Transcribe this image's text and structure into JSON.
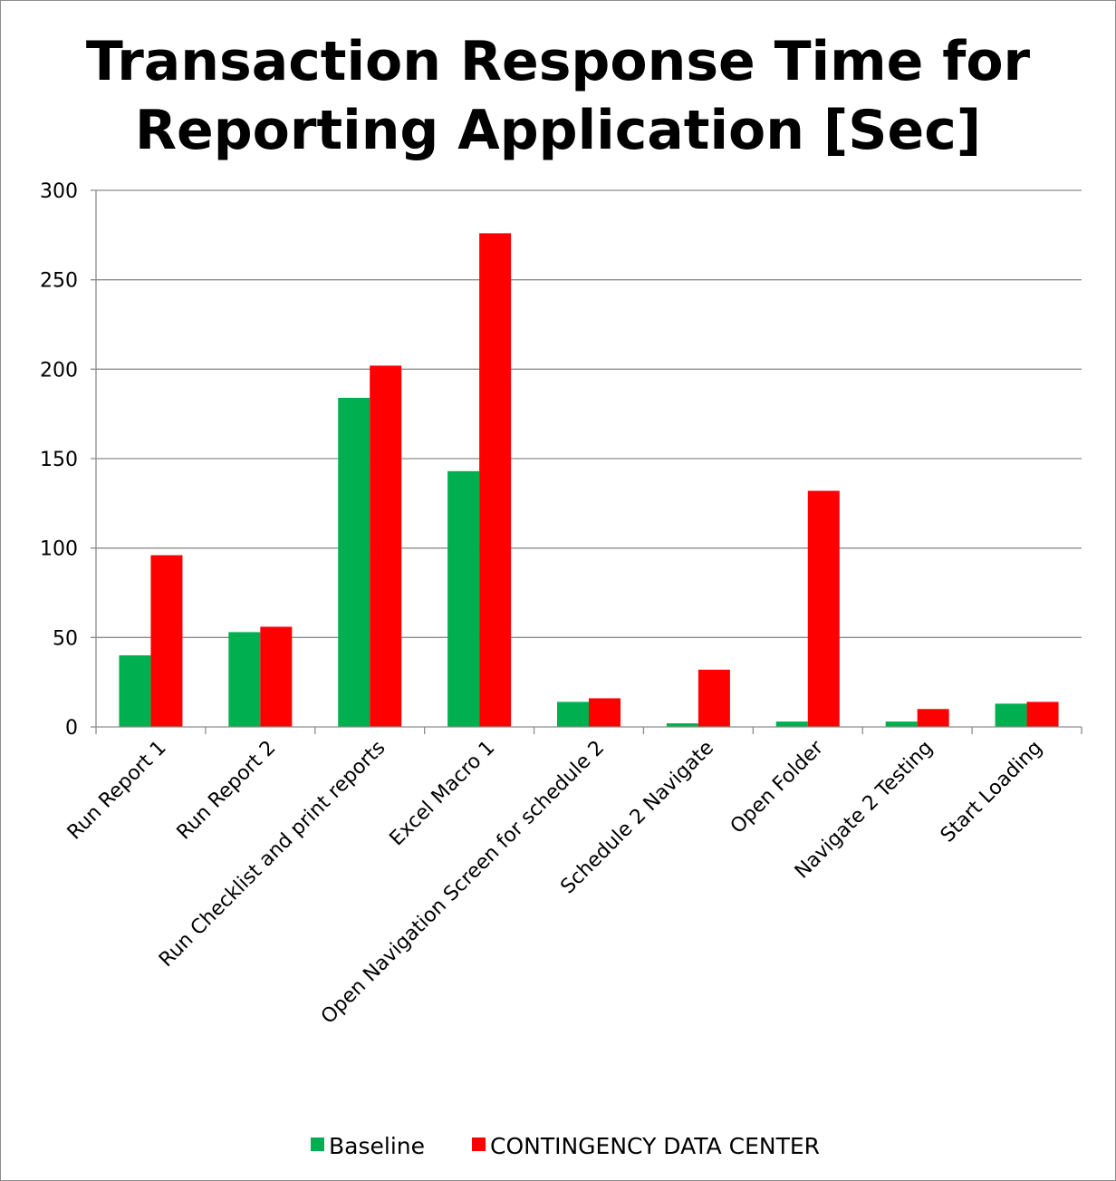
{
  "chart_data": {
    "type": "bar",
    "title": "Transaction Response Time for Reporting Application [Sec]",
    "categories": [
      "Run Report 1",
      "Run Report 2",
      "Run Checklist and print reports",
      "Excel Macro 1",
      "Open Navigation Screen for schedule 2",
      "Schedule 2 Navigate",
      "Open Folder",
      "Navigate 2 Testing",
      "Start Loading"
    ],
    "series": [
      {
        "name": "Baseline",
        "color": "#00b050",
        "values": [
          40,
          53,
          184,
          143,
          14,
          2,
          3,
          3,
          13
        ]
      },
      {
        "name": "CONTINGENCY DATA CENTER",
        "color": "#ff0000",
        "values": [
          96,
          56,
          202,
          276,
          16,
          32,
          132,
          10,
          14
        ]
      }
    ],
    "ylim": [
      0,
      300
    ],
    "yticks": [
      0,
      50,
      100,
      150,
      200,
      250,
      300
    ],
    "grid": true,
    "legend_position": "bottom",
    "xlabel": "",
    "ylabel": ""
  }
}
